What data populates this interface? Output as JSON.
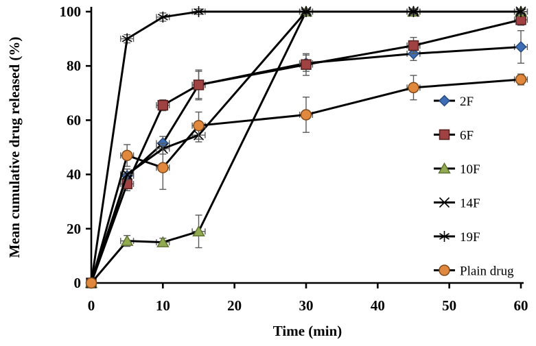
{
  "figure": {
    "background": "#ffffff",
    "axis_color": "#000000",
    "error_bar_color": "#595959"
  },
  "chart_data": {
    "type": "line",
    "title": "",
    "xlabel": "Time (min)",
    "ylabel": "Mean cumulative drug released (%)",
    "xlim": [
      0,
      60
    ],
    "ylim": [
      0,
      100
    ],
    "x_ticks": [
      0,
      10,
      20,
      30,
      40,
      50,
      60
    ],
    "y_ticks": [
      0,
      20,
      40,
      60,
      80,
      100
    ],
    "grid": false,
    "legend_position": "right-middle",
    "x": [
      0,
      5,
      10,
      15,
      30,
      45,
      60
    ],
    "x_error": 0.9,
    "series": [
      {
        "name": "2F",
        "marker": "diamond",
        "marker_color": "#3D6EB5",
        "marker_edge": "#28497C",
        "line_color": "#000000",
        "values": [
          0,
          39.5,
          51.5,
          73,
          81,
          84.5,
          87
        ],
        "y_error": [
          0,
          2.5,
          2.5,
          5,
          3,
          2.5,
          6
        ]
      },
      {
        "name": "6F",
        "marker": "square",
        "marker_color": "#A04242",
        "marker_edge": "#53201F",
        "line_color": "#000000",
        "values": [
          0,
          36.5,
          65.5,
          73,
          80.5,
          87.5,
          97
        ],
        "y_error": [
          0,
          2.5,
          2,
          5.5,
          4,
          3,
          2
        ]
      },
      {
        "name": "10F",
        "marker": "triangle",
        "marker_color": "#93AB50",
        "marker_edge": "#5E7231",
        "line_color": "#000000",
        "values": [
          0,
          15.5,
          15,
          19,
          100,
          100,
          100
        ],
        "y_error": [
          0,
          2,
          1.5,
          6,
          1,
          1,
          1
        ]
      },
      {
        "name": "14F",
        "marker": "x",
        "marker_color": "#000000",
        "marker_edge": "#000000",
        "line_color": "#000000",
        "values": [
          0,
          40,
          49.5,
          54.5,
          100,
          100,
          100
        ],
        "y_error": [
          0,
          2,
          2,
          2.5,
          1,
          1,
          1
        ]
      },
      {
        "name": "19F",
        "marker": "asterisk",
        "marker_color": "#000000",
        "marker_edge": "#000000",
        "line_color": "#000000",
        "values": [
          0,
          90,
          98,
          100,
          100,
          100,
          100
        ],
        "y_error": [
          0,
          1.5,
          1.5,
          1,
          1,
          1,
          1
        ]
      },
      {
        "name": "Plain drug",
        "marker": "circle",
        "marker_color": "#E0883D",
        "marker_edge": "#7D4A1D",
        "line_color": "#000000",
        "values": [
          0,
          47,
          42.5,
          58,
          62,
          72,
          75
        ],
        "y_error": [
          0,
          4,
          8,
          5,
          6.5,
          4.5,
          2
        ]
      }
    ]
  }
}
